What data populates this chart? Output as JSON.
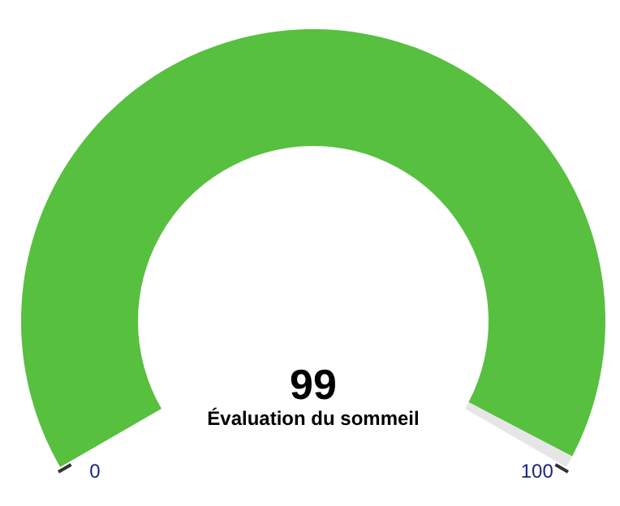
{
  "chart_data": {
    "type": "donut",
    "title": "Évaluation du sommeil",
    "categories": [
      null,
      null
    ],
    "values": [
      99,
      1
    ],
    "colors": [
      "#57c03f",
      "#e6e6e6"
    ],
    "annotations": [
      "99",
      "0",
      "100"
    ],
    "legend": false
  }
}
